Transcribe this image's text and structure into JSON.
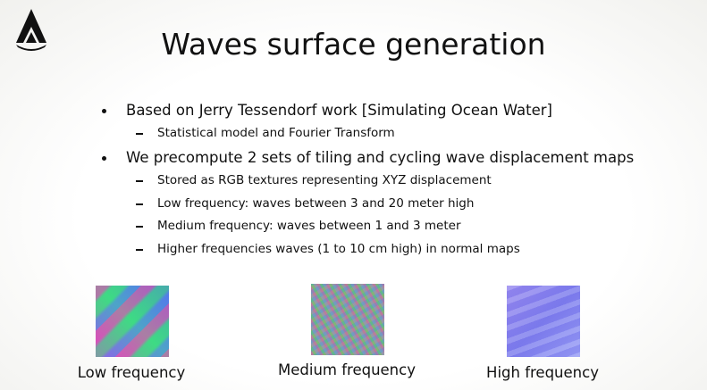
{
  "title": "Waves surface generation",
  "bullets": [
    {
      "text": "Based on Jerry Tessendorf work [Simulating Ocean Water]",
      "sub": [
        "Statistical model and Fourier Transform"
      ]
    },
    {
      "text": "We precompute 2 sets of tiling and cycling wave displacement maps",
      "sub": [
        "Stored as RGB textures representing XYZ displacement",
        "Low frequency: waves between 3 and 20 meter high",
        "Medium frequency: waves between 1 and 3 meter",
        "Higher frequencies waves (1 to 10 cm high) in normal maps"
      ]
    }
  ],
  "images": [
    {
      "caption": "Low frequency"
    },
    {
      "caption": "Medium frequency"
    },
    {
      "caption": "High frequency"
    }
  ]
}
